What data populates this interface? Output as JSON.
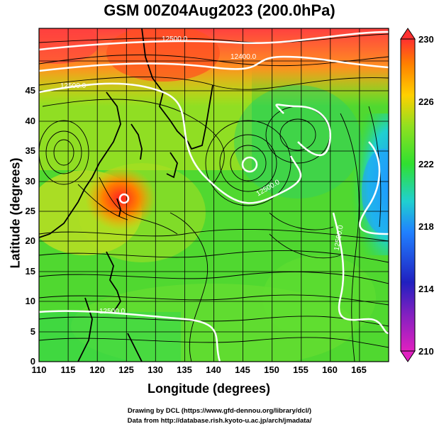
{
  "title": "GSM 00Z04Aug2023 (200.0hPa)",
  "x_axis": {
    "label": "Longitude (degrees)",
    "ticks": [
      "110",
      "115",
      "120",
      "125",
      "130",
      "135",
      "140",
      "145",
      "150",
      "155",
      "160",
      "165"
    ]
  },
  "y_axis": {
    "label": "Latitude (degrees)",
    "ticks": [
      "0",
      "5",
      "10",
      "15",
      "20",
      "25",
      "30",
      "35",
      "40",
      "45"
    ]
  },
  "colorbar": {
    "ticks": [
      "210",
      "214",
      "218",
      "222",
      "226",
      "230"
    ],
    "min": 210,
    "max": 230
  },
  "contour_labels": [
    "12500.0",
    "12400.0",
    "12500.0",
    "12500.0",
    "12500.0",
    "12500.0",
    "12500.0"
  ],
  "credits": {
    "line1": "Drawing by DCL (https://www.gfd-dennou.org/library/dcl/)",
    "line2": "Data from http://database.rish.kyoto-u.ac.jp/arch/jmadata/"
  },
  "map": {
    "type": "filled-contour-with-streamlines",
    "variable": "temperature (K)",
    "lon_range": [
      110,
      170
    ],
    "lat_range": [
      0,
      50
    ],
    "colorscale": [
      "#e020c0",
      "#2020c0",
      "#2080ff",
      "#20d0d0",
      "#30e030",
      "#90e020",
      "#ffd000",
      "#ff8000",
      "#ff3030"
    ],
    "features": [
      "streamlines",
      "geopotential height contours (white)",
      "coastlines"
    ]
  }
}
